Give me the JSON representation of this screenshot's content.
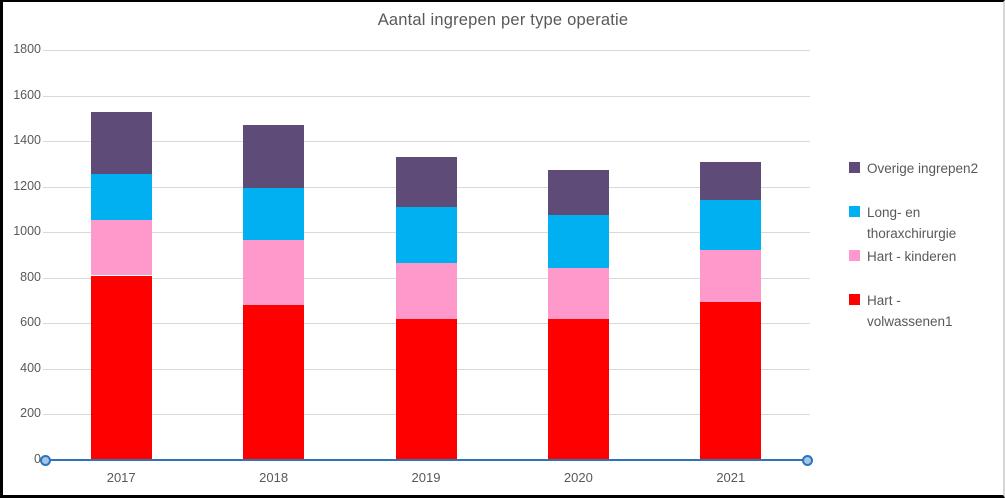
{
  "window": {
    "background": "#ffffff",
    "frame_border_color": "#000000",
    "text_color": "#595959",
    "gridline_color": "#d9d9d9"
  },
  "chart_data": {
    "type": "bar",
    "stacked": true,
    "title": "Aantal ingrepen per type operatie",
    "categories": [
      "2017",
      "2018",
      "2019",
      "2020",
      "2021"
    ],
    "series": [
      {
        "name": "Hart - volwassenen1",
        "color": "#ff0000",
        "values": [
          810,
          680,
          620,
          620,
          695
        ]
      },
      {
        "name": "Hart - kinderen",
        "color": "#ff99cc",
        "values": [
          245,
          285,
          245,
          225,
          225
        ]
      },
      {
        "name": "Long- en thoraxchirurgie",
        "color": "#00b0f0",
        "values": [
          200,
          230,
          245,
          230,
          220
        ]
      },
      {
        "name": "Overige ingrepen2",
        "color": "#5f4b77",
        "values": [
          275,
          275,
          220,
          200,
          170
        ]
      }
    ],
    "stack_totals": [
      1530,
      1470,
      1330,
      1275,
      1310
    ],
    "xlabel": "",
    "ylabel": "",
    "ylim": [
      0,
      1800
    ],
    "ytick_step": 200,
    "yticks": [
      "0",
      "200",
      "400",
      "600",
      "800",
      "1000",
      "1200",
      "1400",
      "1600",
      "1800"
    ],
    "grid": "horizontal-only",
    "legend_position": "right",
    "legend_order_top_to_bottom": [
      "Overige ingrepen2",
      "Long- en thoraxchirurgie",
      "Hart - kinderen",
      "Hart - volwassenen1"
    ],
    "baseline_series": {
      "value": 0,
      "line_color": "#2e75b6",
      "marker_shape": "circle",
      "marker_fill": "#a3c6e8",
      "marker_border": "#2e75b6"
    }
  }
}
